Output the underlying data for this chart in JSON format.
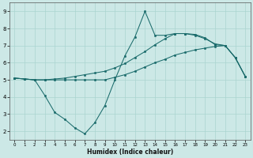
{
  "bg_color": "#cce8e6",
  "line_color": "#1a6b6b",
  "grid_color": "#aad4d0",
  "xlabel": "Humidex (Indice chaleur)",
  "xlim": [
    -0.5,
    23.5
  ],
  "ylim": [
    1.5,
    9.5
  ],
  "yticks": [
    2,
    3,
    4,
    5,
    6,
    7,
    8,
    9
  ],
  "xticks": [
    0,
    1,
    2,
    3,
    4,
    5,
    6,
    7,
    8,
    9,
    10,
    11,
    12,
    13,
    14,
    15,
    16,
    17,
    18,
    19,
    20,
    21,
    22,
    23
  ],
  "line1_x": [
    0,
    1,
    2,
    3,
    4,
    5,
    6,
    7,
    8,
    9,
    10,
    11,
    12,
    13,
    14,
    15,
    16,
    17,
    18,
    19,
    20,
    21,
    22,
    23
  ],
  "line1_y": [
    5.1,
    5.05,
    5.0,
    5.0,
    5.0,
    5.0,
    5.0,
    5.0,
    5.0,
    5.0,
    5.15,
    5.3,
    5.5,
    5.75,
    6.0,
    6.2,
    6.45,
    6.6,
    6.75,
    6.85,
    6.95,
    7.0,
    6.3,
    5.2
  ],
  "line2_x": [
    0,
    1,
    2,
    3,
    4,
    5,
    6,
    7,
    8,
    9,
    10,
    11,
    12,
    13,
    14,
    15,
    16,
    17,
    18,
    19,
    20,
    21,
    22,
    23
  ],
  "line2_y": [
    5.1,
    5.05,
    5.0,
    5.0,
    5.05,
    5.1,
    5.2,
    5.3,
    5.4,
    5.5,
    5.7,
    5.95,
    6.3,
    6.65,
    7.05,
    7.4,
    7.7,
    7.7,
    7.65,
    7.45,
    7.05,
    7.0,
    6.3,
    5.2
  ],
  "line3_x": [
    0,
    1,
    2,
    3,
    4,
    5,
    6,
    7,
    8,
    9,
    10,
    11,
    12,
    13,
    14,
    15,
    16,
    17,
    18,
    19,
    20,
    21,
    22,
    23
  ],
  "line3_y": [
    5.1,
    5.05,
    5.0,
    4.1,
    3.1,
    2.7,
    2.2,
    1.85,
    2.5,
    3.5,
    5.0,
    6.4,
    7.5,
    9.0,
    7.6,
    7.6,
    7.7,
    7.7,
    7.6,
    7.4,
    7.1,
    7.0,
    6.3,
    5.2
  ]
}
